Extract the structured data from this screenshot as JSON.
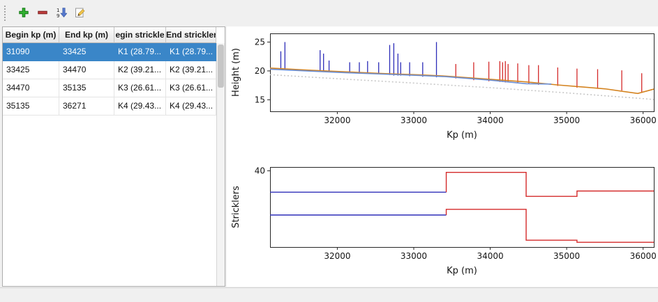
{
  "toolbar": {
    "buttons": [
      {
        "name": "add",
        "icon": "plus-icon"
      },
      {
        "name": "remove",
        "icon": "minus-icon"
      },
      {
        "name": "sort",
        "icon": "sort-numeric-icon"
      },
      {
        "name": "edit",
        "icon": "pencil-icon"
      }
    ]
  },
  "table": {
    "columns": [
      "Begin kp (m)",
      "End kp (m)",
      "egin strickle",
      "End strickler"
    ],
    "rows": [
      {
        "cells": [
          "31090",
          "33425",
          "K1 (28.79...",
          "K1 (28.79..."
        ],
        "selected": true
      },
      {
        "cells": [
          "33425",
          "34470",
          "K2 (39.21...",
          "K2 (39.21..."
        ],
        "selected": false
      },
      {
        "cells": [
          "34470",
          "35135",
          "K3 (26.61...",
          "K3 (26.61..."
        ],
        "selected": false
      },
      {
        "cells": [
          "35135",
          "36271",
          "K4 (29.43...",
          "K4 (29.43..."
        ],
        "selected": false
      }
    ]
  },
  "colors": {
    "selection_blue": "#3a86c8",
    "series_blue": "#2d2db8",
    "series_red": "#d42a2a",
    "series_orange": "#d4831f"
  },
  "chart_data": [
    {
      "type": "line",
      "title": "",
      "xlabel": "Kp (m)",
      "ylabel": "Height (m)",
      "xlim": [
        31120,
        36140
      ],
      "ylim": [
        13,
        26.5
      ],
      "xticks": [
        32000,
        33000,
        34000,
        35000,
        36000
      ],
      "yticks": [
        15,
        20,
        25
      ],
      "series": [
        {
          "name": "ground-dotted",
          "color": "#c8c8c8",
          "width": 1.6,
          "dash": "2 3",
          "x": [
            31120,
            32000,
            33000,
            34000,
            35000,
            36000,
            36140
          ],
          "y": [
            19.35,
            18.65,
            17.9,
            17.1,
            16.2,
            15.2,
            15.05
          ]
        },
        {
          "name": "profile-orange",
          "color": "#d4831f",
          "width": 1.6,
          "x": [
            31120,
            31600,
            32100,
            32600,
            33100,
            33425,
            33900,
            34470,
            34900,
            35135,
            35500,
            35930,
            36140
          ],
          "y": [
            20.5,
            20.15,
            19.85,
            19.55,
            19.3,
            19.1,
            18.65,
            18.1,
            17.55,
            17.3,
            16.9,
            16.1,
            16.85
          ]
        },
        {
          "name": "profile-blue",
          "color": "#6b8fd4",
          "width": 1.6,
          "x": [
            31120,
            31600,
            32100,
            32600,
            33100,
            33425,
            34000,
            34470,
            34800
          ],
          "y": [
            20.3,
            20.0,
            19.7,
            19.45,
            19.2,
            19.0,
            18.4,
            17.78,
            17.72
          ]
        }
      ],
      "sticks": [
        {
          "name": "selected-reach-verticals",
          "color": "#2d2db8",
          "items": [
            [
              31261,
              20.2,
              23.4
            ],
            [
              31315,
              20.2,
              25.0
            ],
            [
              31775,
              19.9,
              23.6
            ],
            [
              31820,
              19.8,
              23.0
            ],
            [
              31892,
              19.8,
              21.8
            ],
            [
              32162,
              19.6,
              21.5
            ],
            [
              32288,
              19.5,
              21.5
            ],
            [
              32396,
              19.5,
              21.7
            ],
            [
              32541,
              19.4,
              21.5
            ],
            [
              32685,
              19.3,
              24.5
            ],
            [
              32739,
              19.2,
              24.8
            ],
            [
              32793,
              19.2,
              23.0
            ],
            [
              32829,
              19.2,
              21.5
            ],
            [
              32946,
              19.1,
              21.5
            ],
            [
              33117,
              19.0,
              21.5
            ],
            [
              33297,
              18.9,
              25.0
            ]
          ]
        },
        {
          "name": "other-reach-verticals",
          "color": "#d42a2a",
          "items": [
            [
              33550,
              18.7,
              21.2
            ],
            [
              33784,
              18.4,
              21.5
            ],
            [
              33982,
              18.2,
              21.6
            ],
            [
              34126,
              18.1,
              21.7
            ],
            [
              34162,
              18.1,
              21.5
            ],
            [
              34198,
              18.0,
              21.7
            ],
            [
              34234,
              18.0,
              21.2
            ],
            [
              34360,
              17.9,
              21.3
            ],
            [
              34505,
              17.7,
              21.0
            ],
            [
              34631,
              17.6,
              21.0
            ],
            [
              34883,
              17.4,
              20.6
            ],
            [
              35135,
              17.1,
              20.4
            ],
            [
              35405,
              16.9,
              20.3
            ],
            [
              35721,
              16.6,
              20.1
            ],
            [
              35982,
              16.3,
              19.6
            ]
          ]
        }
      ]
    },
    {
      "type": "line",
      "title": "",
      "xlabel": "Kp (m)",
      "ylabel": "Stricklers",
      "xlim": [
        31120,
        36140
      ],
      "ylim": [
        0,
        42
      ],
      "xticks": [
        32000,
        33000,
        34000,
        35000,
        36000
      ],
      "yticks": [
        40
      ],
      "steps": [
        {
          "name": "major-strickler-selected",
          "color": "#2d2db8",
          "points": [
            [
              31120,
              28.8
            ],
            [
              33425,
              28.8
            ]
          ]
        },
        {
          "name": "major-strickler-rest",
          "color": "#d42a2a",
          "points": [
            [
              33425,
              28.8
            ],
            [
              33425,
              39.2
            ],
            [
              34470,
              39.2
            ],
            [
              34470,
              26.6
            ],
            [
              35135,
              26.6
            ],
            [
              35135,
              29.4
            ],
            [
              36140,
              29.4
            ]
          ]
        },
        {
          "name": "minor-strickler-selected",
          "color": "#2d2db8",
          "points": [
            [
              31120,
              16.8
            ],
            [
              33425,
              16.8
            ]
          ]
        },
        {
          "name": "minor-strickler-rest",
          "color": "#d42a2a",
          "points": [
            [
              33425,
              16.8
            ],
            [
              33425,
              19.8
            ],
            [
              34470,
              19.8
            ],
            [
              34470,
              3.6
            ],
            [
              35135,
              3.6
            ],
            [
              35135,
              2.5
            ],
            [
              36140,
              2.5
            ]
          ]
        }
      ]
    }
  ]
}
